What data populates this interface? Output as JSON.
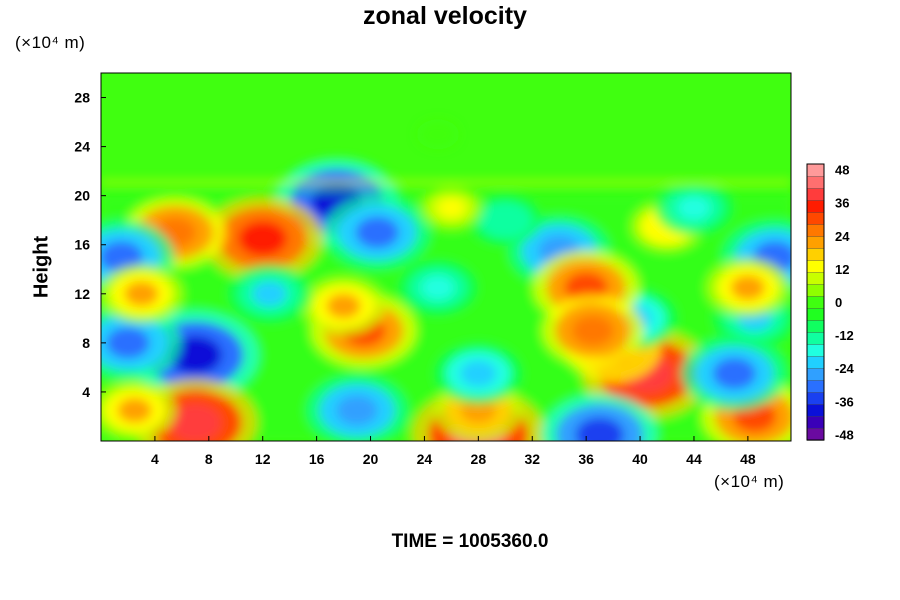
{
  "chart_data": {
    "type": "heatmap",
    "title": "zonal velocity",
    "ylabel": "Height",
    "x_unit": "(×10⁴ m)",
    "y_unit": "(×10⁴ m)",
    "x_ticks": [
      4,
      8,
      12,
      16,
      20,
      24,
      28,
      32,
      36,
      40,
      44,
      48
    ],
    "y_ticks": [
      4,
      8,
      12,
      16,
      20,
      24,
      28
    ],
    "xlim": [
      0,
      51.2
    ],
    "ylim": [
      0,
      30
    ],
    "colorbar": {
      "range": [
        -50,
        50
      ],
      "tick_labels": [
        48,
        36,
        24,
        12,
        0,
        -12,
        -24,
        -36,
        -48
      ],
      "colors": [
        "#6a0aa0",
        "#3a00b8",
        "#0a10d8",
        "#1a40f0",
        "#2a70ff",
        "#30a0ff",
        "#20d0ff",
        "#20ffe0",
        "#10ffa0",
        "#10ff60",
        "#20ff20",
        "#40ff10",
        "#90ff00",
        "#c8ff00",
        "#ffff00",
        "#ffd000",
        "#ffa000",
        "#ff7800",
        "#ff4800",
        "#ff1c00",
        "#ff3c3c",
        "#ff6f6f",
        "#ff9a9a"
      ]
    },
    "features": [
      {
        "x": 25,
        "y": 25,
        "value": 2
      },
      {
        "x": 7,
        "y": 7,
        "value": -40
      },
      {
        "x": 2,
        "y": 8,
        "value": -30
      },
      {
        "x": 7,
        "y": 1.5,
        "value": 38
      },
      {
        "x": 2.5,
        "y": 2.5,
        "value": 20
      },
      {
        "x": 19.5,
        "y": 9,
        "value": 30
      },
      {
        "x": 18,
        "y": 11,
        "value": 20
      },
      {
        "x": 28,
        "y": 0.5,
        "value": 42
      },
      {
        "x": 28,
        "y": 2.5,
        "value": 22
      },
      {
        "x": 40.5,
        "y": 5.5,
        "value": 40
      },
      {
        "x": 38,
        "y": 7.5,
        "value": 25
      },
      {
        "x": 48.5,
        "y": 2,
        "value": 30
      },
      {
        "x": 37,
        "y": 0.5,
        "value": -35
      },
      {
        "x": 28,
        "y": 5.5,
        "value": -22
      },
      {
        "x": 19,
        "y": 2.5,
        "value": -28
      },
      {
        "x": 47,
        "y": 5.5,
        "value": -30
      },
      {
        "x": 48.5,
        "y": 10,
        "value": -20
      },
      {
        "x": 39.5,
        "y": 10,
        "value": -22
      },
      {
        "x": 17.5,
        "y": 19.5,
        "value": -38
      },
      {
        "x": 20.5,
        "y": 17,
        "value": -30
      },
      {
        "x": 12,
        "y": 16.5,
        "value": 36
      },
      {
        "x": 5.5,
        "y": 17,
        "value": 28
      },
      {
        "x": 1.5,
        "y": 15,
        "value": -30
      },
      {
        "x": 34,
        "y": 15.5,
        "value": -28
      },
      {
        "x": 50,
        "y": 15,
        "value": -30
      },
      {
        "x": 36,
        "y": 12.5,
        "value": 30
      },
      {
        "x": 48,
        "y": 12.5,
        "value": 20
      },
      {
        "x": 12.5,
        "y": 12,
        "value": -20
      },
      {
        "x": 36.5,
        "y": 9,
        "value": 28
      },
      {
        "x": 42,
        "y": 17.5,
        "value": 15
      },
      {
        "x": 30,
        "y": 18,
        "value": -15
      },
      {
        "x": 25,
        "y": 12.5,
        "value": -18
      },
      {
        "x": 44,
        "y": 19,
        "value": -18
      },
      {
        "x": 26,
        "y": 19,
        "value": 12
      },
      {
        "x": 3,
        "y": 12,
        "value": 20
      }
    ]
  },
  "time_label": "TIME = 1005360.0"
}
